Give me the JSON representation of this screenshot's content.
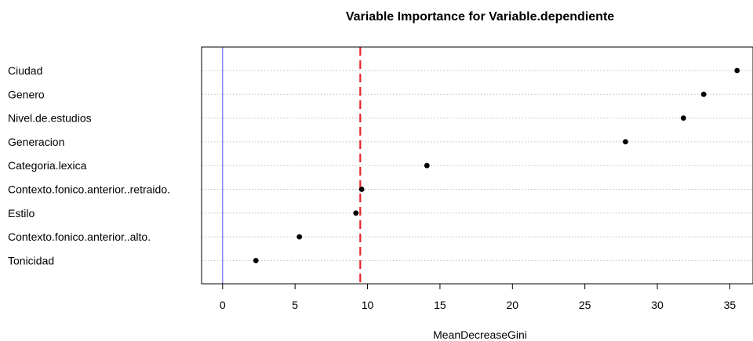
{
  "chart_data": {
    "type": "scatter",
    "title": "Variable Importance for  Variable.dependiente",
    "xlabel": "MeanDecreaseGini",
    "ylabel": "",
    "xlim": [
      -1.45,
      36.6
    ],
    "xticks": [
      0,
      5,
      10,
      15,
      20,
      25,
      30,
      35
    ],
    "grid": "horizontal dotted",
    "categories": [
      "Ciudad",
      "Genero",
      "Nivel.de.estudios",
      "Generacion",
      "Categoria.lexica",
      "Contexto.fonico.anterior..retraido.",
      "Estilo",
      "Contexto.fonico.anterior..alto.",
      "Tonicidad"
    ],
    "values": [
      35.5,
      33.2,
      31.8,
      27.8,
      14.1,
      9.6,
      9.2,
      5.3,
      2.3
    ],
    "reference_lines": [
      {
        "value": 0,
        "color": "#6b6bff",
        "style": "solid"
      },
      {
        "value": 9.5,
        "color": "#e8242a",
        "style": "dashed"
      }
    ],
    "point_color": "#000000"
  }
}
